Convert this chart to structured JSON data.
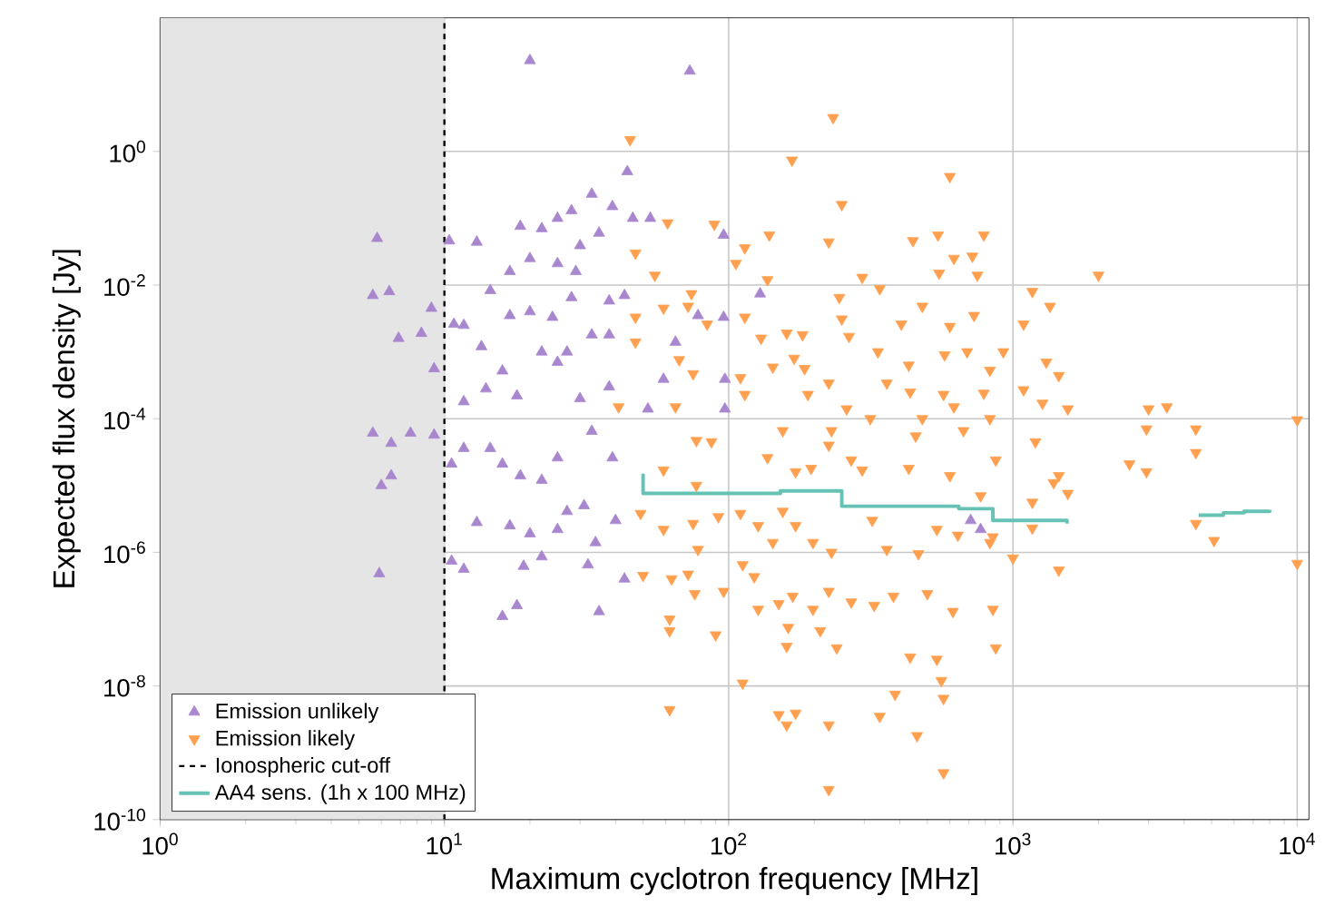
{
  "chart_data": {
    "type": "scatter",
    "xlabel": "Maximum cyclotron frequency [MHz]",
    "ylabel": "Expected flux density [Jy]",
    "log": "xy",
    "grid": true,
    "legend": "bottom left",
    "xlim": [
      1,
      11000
    ],
    "ylim": [
      1e-10,
      100
    ],
    "xticks": [
      {
        "value": 1,
        "label": "10$^{0}$"
      },
      {
        "value": 10,
        "label": "10$^{1}$"
      },
      {
        "value": 100,
        "label": "10$^{2}$"
      },
      {
        "value": 1000,
        "label": "10$^{3}$"
      },
      {
        "value": 10000,
        "label": "10$^{4}$"
      }
    ],
    "yticks": [
      {
        "value": 1e-10,
        "label": "10$^{-10}$"
      },
      {
        "value": 1e-08,
        "label": "10$^{-8}$"
      },
      {
        "value": 1e-06,
        "label": "10$^{-6}$"
      },
      {
        "value": 0.0001,
        "label": "10$^{-4}$"
      },
      {
        "value": 0.01,
        "label": "10$^{-2}$"
      },
      {
        "value": 1,
        "label": "10$^{0}$"
      }
    ],
    "bands": [
      {
        "axis": "x",
        "from": 1,
        "to": 10,
        "color": "#e5e5e5"
      }
    ],
    "ref_lines": [
      {
        "axis": "x",
        "value": 10,
        "label": "Ionospheric cut-off",
        "color": "#000000",
        "line_style": "dashed"
      }
    ],
    "series": [
      {
        "name": "Emission unlikely",
        "marker": "triangle",
        "color": "#a987cf",
        "x": [
          20,
          73,
          44,
          5.8,
          5.6,
          6.4,
          6.9,
          8.3,
          9.0,
          9.2,
          33,
          39,
          28,
          18.5,
          13,
          25,
          22,
          46,
          53,
          17,
          20,
          30,
          35,
          10.4,
          29,
          25,
          14.5,
          28,
          38,
          43,
          20,
          17,
          11.7,
          24,
          33,
          38,
          22,
          13.5,
          10.8,
          27,
          16,
          25,
          18,
          14,
          11.7,
          30,
          38,
          5.6,
          6.5,
          7.6,
          9.2,
          6.0,
          6.5,
          5.9,
          11.7,
          10.6,
          10.6,
          11.7,
          13,
          14.5,
          16,
          18.5,
          17,
          20,
          19,
          22,
          18,
          16,
          22,
          25,
          27,
          31,
          25,
          32,
          34,
          35,
          43,
          33,
          39,
          40,
          710,
          770,
          96,
          129,
          96,
          78,
          65,
          97,
          97,
          52,
          59
        ],
        "values": [
          23,
          16,
          0.5,
          0.05,
          0.007,
          0.008,
          0.0016,
          0.0019,
          0.0045,
          0.00056,
          0.23,
          0.15,
          0.13,
          0.076,
          0.044,
          0.1,
          0.07,
          0.1,
          0.1,
          0.016,
          0.025,
          0.039,
          0.06,
          0.046,
          0.016,
          0.021,
          0.0083,
          0.0065,
          0.0058,
          0.007,
          0.004,
          0.0035,
          0.0025,
          0.0033,
          0.0018,
          0.0018,
          0.001,
          0.0012,
          0.0026,
          0.001,
          0.00052,
          0.0007,
          0.00022,
          0.00028,
          0.00018,
          0.0002,
          0.0003,
          6.1e-05,
          4.3e-05,
          6.1e-05,
          5.7e-05,
          1e-05,
          1.4e-05,
          4.8e-07,
          3.6e-05,
          2.1e-05,
          7.4e-07,
          5.6e-07,
          2.8e-06,
          3.6e-05,
          2.1e-05,
          1.4e-05,
          2.5e-06,
          1.9e-06,
          6.2e-07,
          8.6e-07,
          1.6e-07,
          1.1e-07,
          1.2e-05,
          2.6e-05,
          4.1e-06,
          5e-06,
          2.2e-06,
          6.5e-07,
          1.4e-06,
          1.3e-07,
          4e-07,
          6.5e-05,
          2.6e-05,
          3e-06,
          3e-06,
          2.2e-06,
          0.056,
          0.0074,
          0.0033,
          0.0035,
          0.0014,
          0.00039,
          0.00014,
          0.00014,
          0.00039
        ]
      },
      {
        "name": "Emission likely",
        "marker": "triangle_down",
        "color": "#ffa050",
        "x": [
          233,
          45,
          167,
          600,
          250,
          225,
          445,
          545,
          790,
          139,
          114,
          89,
          61,
          47,
          55,
          106,
          137,
          295,
          620,
          720,
          550,
          750,
          245,
          340,
          480,
          730,
          250,
          405,
          600,
          265,
          335,
          430,
          575,
          690,
          925,
          830,
          182,
          160,
          130,
          114,
          170,
          185,
          110,
          143,
          225,
          190,
          260,
          360,
          435,
          570,
          620,
          790,
          830,
          480,
          155,
          230,
          315,
          455,
          670,
          114,
          75,
          84,
          72,
          59,
          74,
          47,
          47,
          67,
          41,
          65,
          77,
          225,
          270,
          295,
          430,
          600,
          870,
          172,
          195,
          137,
          87,
          77,
          59,
          49,
          59,
          75,
          92,
          110,
          127,
          155,
          172,
          143,
          198,
          230,
          320,
          360,
          465,
          540,
          640,
          830,
          78,
          50,
          63,
          72,
          76,
          96,
          112,
          123,
          127,
          150,
          168,
          162,
          198,
          210,
          225,
          270,
          325,
          380,
          500,
          615,
          850,
          62,
          90,
          62,
          160,
          240,
          435,
          540,
          870,
          560,
          112,
          385,
          570,
          62,
          150,
          172,
          160,
          225,
          340,
          460,
          570,
          225,
          2000,
          1170,
          1350,
          1090,
          1310,
          1450,
          1090,
          1270,
          1560,
          3000,
          3480,
          2950,
          4400,
          10000,
          1200,
          2570,
          2950,
          4400,
          1450,
          1390,
          1560,
          1170,
          4400,
          5100,
          1170,
          1000,
          1450,
          10000,
          850,
          770
        ],
        "values": [
          3.2,
          1.5,
          0.74,
          0.42,
          0.16,
          0.044,
          0.046,
          0.056,
          0.056,
          0.056,
          0.036,
          0.081,
          0.085,
          0.03,
          0.014,
          0.021,
          0.012,
          0.013,
          0.025,
          0.027,
          0.015,
          0.014,
          0.0065,
          0.0088,
          0.0048,
          0.0035,
          0.0031,
          0.0026,
          0.0024,
          0.0017,
          0.001,
          0.00063,
          0.0009,
          0.001,
          0.001,
          0.00053,
          0.0018,
          0.0019,
          0.0016,
          0.0033,
          0.0008,
          0.00056,
          0.00041,
          0.00059,
          0.00034,
          0.00023,
          0.00014,
          0.00034,
          0.00025,
          0.00023,
          0.00015,
          0.00024,
          0.0001,
          0.0001,
          6.6e-05,
          6.6e-05,
          0.0001,
          5.5e-05,
          6.6e-05,
          0.00023,
          0.00047,
          0.0026,
          0.0048,
          0.0045,
          0.0074,
          0.0033,
          0.0014,
          0.00076,
          0.00015,
          0.00015,
          4.7e-05,
          4e-05,
          2.4e-05,
          1.7e-05,
          1.8e-05,
          1.4e-05,
          2.4e-05,
          1.6e-05,
          1.8e-05,
          2.6e-05,
          4.5e-05,
          1e-05,
          1.7e-05,
          3.8e-06,
          2.2e-06,
          2.7e-06,
          3.4e-06,
          3.8e-06,
          2.5e-06,
          4.1e-06,
          2.5e-06,
          1.4e-06,
          1.4e-06,
          1e-06,
          3e-06,
          1.1e-06,
          9.5e-07,
          2.2e-06,
          1.8e-06,
          1.4e-06,
          1.1e-06,
          4.5e-07,
          4e-07,
          4.7e-07,
          2.4e-07,
          2.6e-07,
          6.5e-07,
          4.3e-07,
          1.4e-07,
          1.7e-07,
          2.2e-07,
          7.5e-08,
          1.4e-07,
          6.7e-08,
          2.6e-07,
          1.8e-07,
          1.6e-07,
          2.2e-07,
          2.4e-07,
          1.3e-07,
          1.4e-07,
          1e-07,
          5.8e-08,
          6.7e-08,
          3.9e-08,
          3.7e-08,
          2.7e-08,
          2.5e-08,
          3.7e-08,
          1.2e-08,
          1.1e-08,
          7.5e-09,
          6.5e-09,
          4.4e-09,
          3.7e-09,
          3.9e-09,
          2.6e-09,
          2.6e-09,
          3.5e-09,
          1.8e-09,
          5e-10,
          2.8e-10,
          0.014,
          0.008,
          0.0048,
          0.0026,
          0.0007,
          0.00044,
          0.00027,
          0.00017,
          0.00014,
          0.00014,
          0.00015,
          7e-05,
          7e-05,
          9.6e-05,
          4.5e-05,
          2.1e-05,
          1.6e-05,
          3.1e-05,
          1.4e-05,
          1.1e-05,
          7.6e-06,
          5.6e-06,
          2.7e-06,
          1.5e-06,
          2.3e-06,
          8.2e-07,
          5.4e-07,
          6.8e-07,
          1.7e-06,
          7e-06
        ]
      },
      {
        "name": "AA4 sens. (1h x 100 MHz)",
        "type": "step",
        "marker": "none",
        "line_style": "solid",
        "color": "#66c2b4",
        "x": [
          50,
          50,
          152,
          250,
          645,
          850,
          1550,
          3000,
          4500,
          5500,
          6500,
          8000
        ],
        "values": [
          1.5e-05,
          7.6e-06,
          8.3e-06,
          4.9e-06,
          4.5e-06,
          3e-06,
          2.7e-06,
          null,
          3.6e-06,
          3.9e-06,
          4.1e-06,
          4.3e-06
        ]
      }
    ]
  }
}
